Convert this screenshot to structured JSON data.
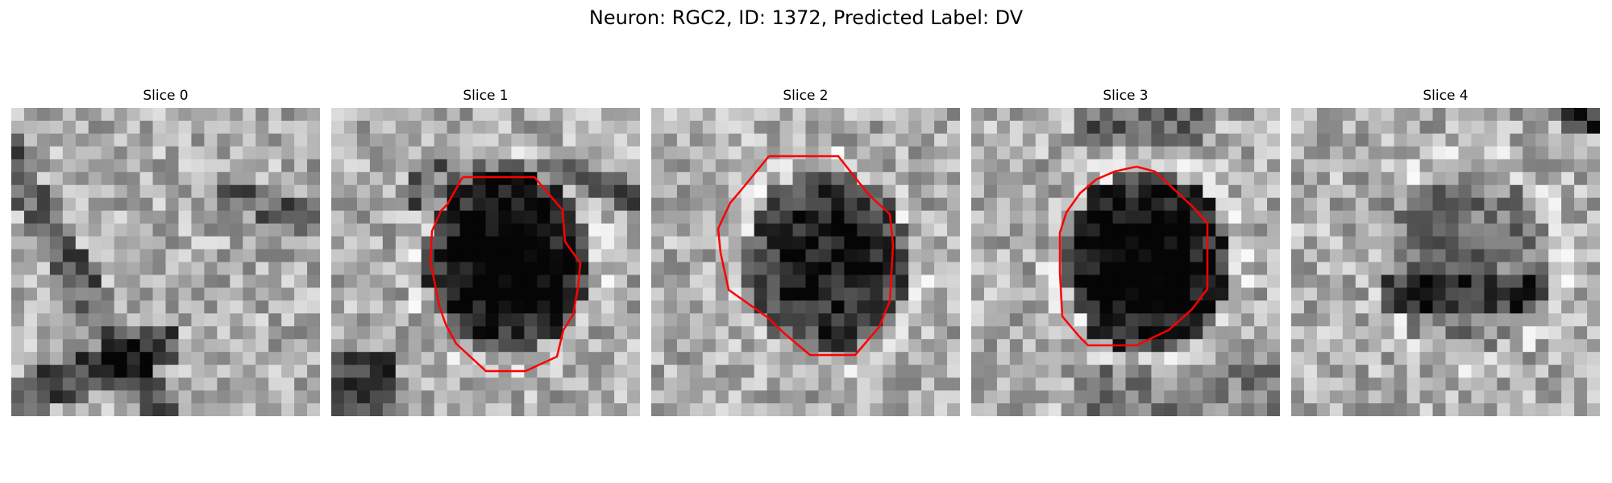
{
  "figure": {
    "title": "Neuron: RGC2, ID: 1372, Predicted Label: DV",
    "colors": {
      "contour": "#ff0000"
    },
    "panels": [
      {
        "title": "Slice 0",
        "seed": 11,
        "blob": null,
        "bands": "diag",
        "contour": false
      },
      {
        "title": "Slice 1",
        "seed": 23,
        "blob": 0.78,
        "bands": "arc",
        "contour": true
      },
      {
        "title": "Slice 2",
        "seed": 37,
        "blob": 0.62,
        "bands": "none",
        "contour": true
      },
      {
        "title": "Slice 3",
        "seed": 51,
        "blob": 0.8,
        "bands": "top",
        "contour": true
      },
      {
        "title": "Slice 4",
        "seed": 67,
        "blob": 0.25,
        "bands": "soft",
        "contour": false
      }
    ]
  }
}
